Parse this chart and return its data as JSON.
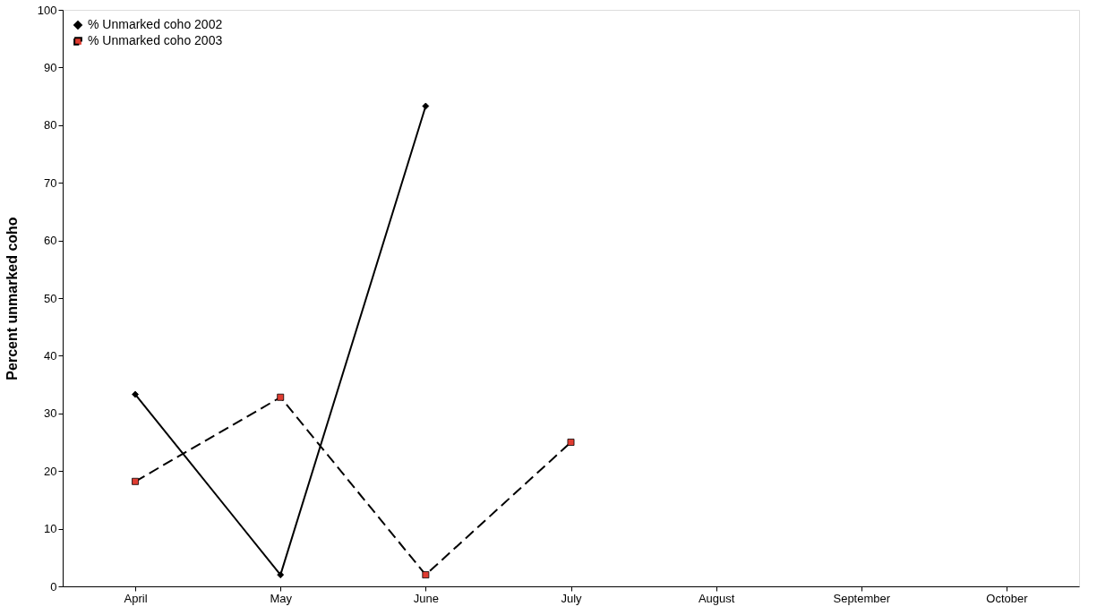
{
  "chart_data": {
    "type": "line",
    "ylabel": "Percent unmarked coho",
    "categories": [
      "April",
      "May",
      "June",
      "July",
      "August",
      "September",
      "October"
    ],
    "ylim": [
      0,
      100
    ],
    "yticks": [
      0,
      10,
      20,
      30,
      40,
      50,
      60,
      70,
      80,
      90,
      100
    ],
    "grid": false,
    "legend": "top left",
    "series": [
      {
        "name": "% Unmarked coho 2002",
        "color": "#000000",
        "marker": "diamond",
        "line_style": "solid",
        "values": [
          33.3,
          2,
          83.3,
          null,
          null,
          null,
          null
        ]
      },
      {
        "name": "% Unmarked coho 2003",
        "color": "#e03c31",
        "marker": "square",
        "line_style": "dashed",
        "values": [
          18.2,
          32.8,
          2,
          25,
          null,
          null,
          null
        ]
      }
    ]
  }
}
